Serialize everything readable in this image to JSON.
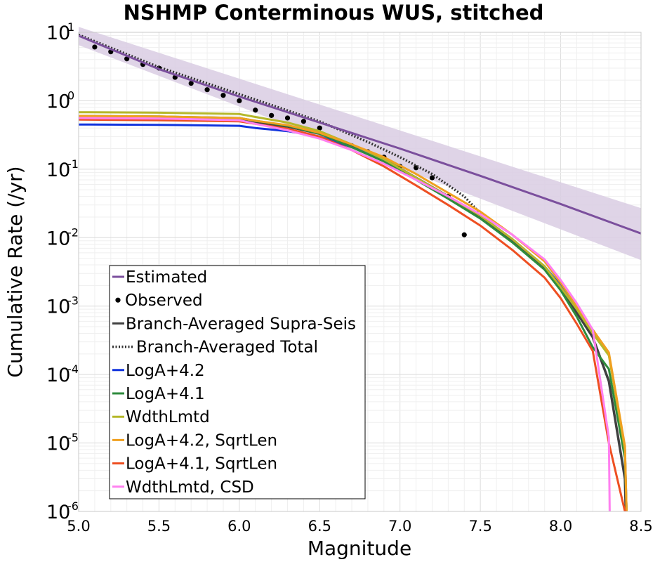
{
  "chart_data": {
    "type": "line",
    "title": "NSHMP Conterminous WUS, stitched",
    "xlabel": "Magnitude",
    "ylabel": "Cumulative Rate (/yr)",
    "xlim": [
      5.0,
      8.5
    ],
    "ylim": [
      1e-06,
      10
    ],
    "yscale": "log",
    "grid": true,
    "legend_position": "lower-left",
    "x_ticks": [
      "5.0",
      "5.5",
      "6.0",
      "6.5",
      "7.0",
      "7.5",
      "8.0",
      "8.5"
    ],
    "y_ticks": [
      {
        "base": "10",
        "exp": "1",
        "value": 10
      },
      {
        "base": "10",
        "exp": "0",
        "value": 1
      },
      {
        "base": "10",
        "exp": "-1",
        "value": 0.1
      },
      {
        "base": "10",
        "exp": "-2",
        "value": 0.01
      },
      {
        "base": "10",
        "exp": "-3",
        "value": 0.001
      },
      {
        "base": "10",
        "exp": "-4",
        "value": 0.0001
      },
      {
        "base": "10",
        "exp": "-5",
        "value": 1e-05
      },
      {
        "base": "10",
        "exp": "-6",
        "value": 1e-06
      }
    ],
    "estimated_band": {
      "x": [
        5.0,
        8.5
      ],
      "lower": [
        6.5,
        0.0047
      ],
      "upper": [
        12.0,
        0.027
      ],
      "color": "#d9cce3"
    },
    "series": [
      {
        "name": "Estimated",
        "color": "#7b4f9d",
        "style": "solid",
        "width": 3,
        "x": [
          5.0,
          5.5,
          6.0,
          6.5,
          7.0,
          7.5,
          8.0,
          8.5
        ],
        "y": [
          8.9,
          2.9,
          1.15,
          0.48,
          0.2,
          0.08,
          0.031,
          0.0115
        ]
      },
      {
        "name": "Observed",
        "color": "#000000",
        "style": "markers",
        "x": [
          5.1,
          5.2,
          5.3,
          5.4,
          5.5,
          5.6,
          5.7,
          5.8,
          5.9,
          6.0,
          6.1,
          6.2,
          6.3,
          6.4,
          6.5,
          6.6,
          6.7,
          6.8,
          6.9,
          7.0,
          7.1,
          7.2,
          7.3,
          7.4
        ],
        "y": [
          6.1,
          5.2,
          4.1,
          3.4,
          3.0,
          2.2,
          1.8,
          1.45,
          1.2,
          1.0,
          0.73,
          0.61,
          0.56,
          0.5,
          0.4,
          0.26,
          0.22,
          0.18,
          0.15,
          0.11,
          0.105,
          0.075,
          0.04,
          0.011
        ]
      },
      {
        "name": "Branch-Averaged Supra-Seis",
        "color": "#404040",
        "style": "solid",
        "width": 3.5,
        "x": [
          5.0,
          5.5,
          6.0,
          6.1,
          6.3,
          6.5,
          6.7,
          6.9,
          7.1,
          7.3,
          7.5,
          7.7,
          7.9,
          8.0,
          8.1,
          8.2,
          8.3,
          8.4,
          8.405
        ],
        "y": [
          0.55,
          0.54,
          0.52,
          0.47,
          0.42,
          0.33,
          0.22,
          0.14,
          0.075,
          0.04,
          0.02,
          0.009,
          0.0036,
          0.0018,
          0.0008,
          0.00035,
          8e-05,
          3e-06,
          1e-06
        ]
      },
      {
        "name": "Branch-Averaged Total",
        "color": "#333333",
        "style": "dotted",
        "width": 3.5,
        "x": [
          5.0,
          5.5,
          6.0,
          6.5,
          6.8,
          7.0,
          7.2,
          7.4,
          7.55,
          7.62
        ],
        "y": [
          9.2,
          3.1,
          1.25,
          0.5,
          0.25,
          0.15,
          0.085,
          0.04,
          0.017,
          0.012
        ]
      },
      {
        "name": "LogA+4.2",
        "color": "#1133dd",
        "style": "solid",
        "width": 3,
        "x": [
          5.0,
          5.5,
          6.0,
          6.1,
          6.3,
          6.5,
          6.7,
          6.9,
          7.1,
          7.3,
          7.5,
          7.7,
          7.9,
          8.0,
          8.1,
          8.2,
          8.3,
          8.4,
          8.41
        ],
        "y": [
          0.45,
          0.445,
          0.43,
          0.4,
          0.36,
          0.3,
          0.21,
          0.135,
          0.075,
          0.04,
          0.021,
          0.0095,
          0.0038,
          0.002,
          0.0009,
          0.00045,
          0.0002,
          8e-06,
          1e-06
        ]
      },
      {
        "name": "LogA+4.1",
        "color": "#2e8b3c",
        "style": "solid",
        "width": 3,
        "x": [
          5.0,
          5.5,
          6.0,
          6.1,
          6.3,
          6.5,
          6.7,
          6.9,
          7.1,
          7.3,
          7.5,
          7.7,
          7.9,
          8.0,
          8.1,
          8.2,
          8.3,
          8.4,
          8.41
        ],
        "y": [
          0.6,
          0.59,
          0.56,
          0.51,
          0.43,
          0.33,
          0.21,
          0.13,
          0.07,
          0.037,
          0.019,
          0.0085,
          0.0034,
          0.0017,
          0.0007,
          0.00025,
          0.00012,
          6e-06,
          1e-06
        ]
      },
      {
        "name": "WdthLmtd",
        "color": "#b5b82a",
        "style": "solid",
        "width": 3,
        "x": [
          5.0,
          5.5,
          6.0,
          6.1,
          6.3,
          6.5,
          6.7,
          6.9,
          7.1,
          7.3,
          7.5,
          7.7,
          7.9,
          8.0,
          8.1,
          8.2,
          8.3,
          8.4,
          8.41
        ],
        "y": [
          0.68,
          0.67,
          0.64,
          0.58,
          0.48,
          0.36,
          0.23,
          0.14,
          0.075,
          0.04,
          0.021,
          0.0095,
          0.0038,
          0.0019,
          0.0009,
          0.0004,
          0.00019,
          8e-06,
          1e-06
        ]
      },
      {
        "name": "LogA+4.2, SqrtLen",
        "color": "#f0a020",
        "style": "solid",
        "width": 3,
        "x": [
          5.0,
          5.5,
          6.0,
          6.1,
          6.3,
          6.5,
          6.7,
          6.9,
          7.1,
          7.3,
          7.5,
          7.7,
          7.9,
          8.0,
          8.1,
          8.2,
          8.3,
          8.4,
          8.41
        ],
        "y": [
          0.6,
          0.59,
          0.56,
          0.51,
          0.44,
          0.34,
          0.23,
          0.15,
          0.085,
          0.045,
          0.024,
          0.011,
          0.0045,
          0.0022,
          0.001,
          0.00045,
          0.00021,
          9e-06,
          1e-06
        ]
      },
      {
        "name": "LogA+4.1, SqrtLen",
        "color": "#ee4f22",
        "style": "solid",
        "width": 3,
        "x": [
          5.0,
          5.5,
          6.0,
          6.1,
          6.3,
          6.5,
          6.7,
          6.9,
          7.1,
          7.3,
          7.5,
          7.7,
          7.9,
          8.0,
          8.1,
          8.2,
          8.3,
          8.4,
          8.41
        ],
        "y": [
          0.53,
          0.52,
          0.5,
          0.46,
          0.39,
          0.3,
          0.19,
          0.11,
          0.058,
          0.03,
          0.015,
          0.0066,
          0.0026,
          0.0013,
          0.00055,
          0.00022,
          1e-05,
          1e-06,
          1e-06
        ]
      },
      {
        "name": "WdthLmtd, CSD",
        "color": "#ff80f0",
        "style": "solid",
        "width": 3,
        "x": [
          5.0,
          5.5,
          6.0,
          6.1,
          6.3,
          6.5,
          6.7,
          6.9,
          7.1,
          7.3,
          7.5,
          7.7,
          7.9,
          8.0,
          8.1,
          8.2,
          8.3,
          8.305
        ],
        "y": [
          0.56,
          0.55,
          0.52,
          0.46,
          0.37,
          0.28,
          0.19,
          0.12,
          0.07,
          0.04,
          0.022,
          0.011,
          0.0048,
          0.0024,
          0.0011,
          0.00045,
          1.2e-05,
          1e-06
        ]
      }
    ]
  }
}
